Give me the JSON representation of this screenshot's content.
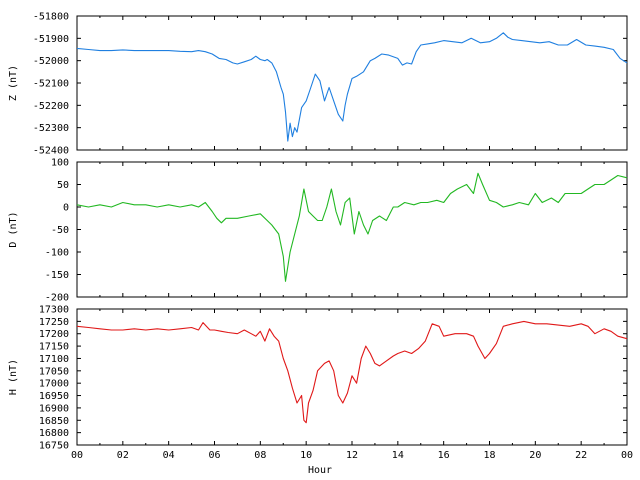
{
  "chart_data": [
    {
      "type": "line",
      "ylabel": "Z (nT)",
      "ylim": [
        -52400,
        -51800
      ],
      "yticks": [
        "-51800",
        "-51900",
        "-52000",
        "-52100",
        "-52200",
        "-52300",
        "-52400"
      ],
      "color": "#1f7fe0",
      "x": [
        0,
        0.5,
        1,
        1.5,
        2,
        2.5,
        3,
        3.5,
        4,
        4.5,
        5,
        5.3,
        5.6,
        5.9,
        6.2,
        6.5,
        6.8,
        7,
        7.3,
        7.6,
        7.8,
        8,
        8.2,
        8.3,
        8.5,
        8.7,
        8.9,
        9.0,
        9.1,
        9.2,
        9.3,
        9.4,
        9.5,
        9.6,
        9.8,
        10,
        10.2,
        10.4,
        10.6,
        10.8,
        11,
        11.2,
        11.4,
        11.6,
        11.7,
        11.8,
        12,
        12.2,
        12.5,
        12.8,
        13,
        13.3,
        13.6,
        14,
        14.2,
        14.4,
        14.6,
        14.8,
        15,
        15.3,
        15.6,
        16,
        16.4,
        16.8,
        17.2,
        17.6,
        18,
        18.3,
        18.6,
        18.8,
        19,
        19.4,
        19.8,
        20.2,
        20.6,
        21,
        21.4,
        21.8,
        22.2,
        22.6,
        23,
        23.4,
        23.7,
        24
      ],
      "y": [
        -51945,
        -51950,
        -51955,
        -51955,
        -51952,
        -51955,
        -51955,
        -51955,
        -51955,
        -51958,
        -51960,
        -51955,
        -51960,
        -51970,
        -51990,
        -51995,
        -52010,
        -52015,
        -52005,
        -51995,
        -51980,
        -51995,
        -52000,
        -51995,
        -52010,
        -52050,
        -52120,
        -52150,
        -52230,
        -52360,
        -52280,
        -52340,
        -52300,
        -52320,
        -52210,
        -52180,
        -52120,
        -52060,
        -52090,
        -52180,
        -52120,
        -52180,
        -52240,
        -52270,
        -52200,
        -52150,
        -52080,
        -52070,
        -52050,
        -52000,
        -51990,
        -51970,
        -51975,
        -51990,
        -52020,
        -52010,
        -52015,
        -51960,
        -51930,
        -51925,
        -51920,
        -51910,
        -51915,
        -51920,
        -51900,
        -51920,
        -51915,
        -51900,
        -51875,
        -51895,
        -51905,
        -51910,
        -51915,
        -51920,
        -51915,
        -51930,
        -51930,
        -51905,
        -51930,
        -51935,
        -51940,
        -51950,
        -51990,
        -52010
      ]
    },
    {
      "type": "line",
      "ylabel": "D (nT)",
      "ylim": [
        -200,
        100
      ],
      "yticks": [
        "100",
        "50",
        "0",
        "-50",
        "-100",
        "-150",
        "-200"
      ],
      "color": "#22b822",
      "x": [
        0,
        0.5,
        1,
        1.5,
        2,
        2.5,
        3,
        3.5,
        4,
        4.5,
        5,
        5.3,
        5.6,
        5.9,
        6.1,
        6.3,
        6.5,
        7,
        7.5,
        8,
        8.3,
        8.5,
        8.8,
        9.0,
        9.1,
        9.3,
        9.5,
        9.7,
        9.9,
        10.1,
        10.3,
        10.5,
        10.7,
        10.9,
        11.1,
        11.3,
        11.5,
        11.7,
        11.9,
        12.1,
        12.3,
        12.5,
        12.7,
        12.9,
        13.2,
        13.5,
        13.8,
        14,
        14.3,
        14.7,
        15,
        15.3,
        15.7,
        16,
        16.3,
        16.6,
        17,
        17.3,
        17.5,
        17.7,
        18,
        18.3,
        18.6,
        19,
        19.3,
        19.7,
        20,
        20.3,
        20.7,
        21,
        21.3,
        21.7,
        22,
        22.3,
        22.6,
        23,
        23.3,
        23.6,
        24
      ],
      "y": [
        5,
        0,
        5,
        0,
        10,
        5,
        5,
        0,
        5,
        0,
        5,
        0,
        10,
        -10,
        -25,
        -35,
        -25,
        -25,
        -20,
        -15,
        -30,
        -40,
        -60,
        -110,
        -165,
        -100,
        -60,
        -20,
        40,
        -10,
        -20,
        -30,
        -30,
        0,
        40,
        -10,
        -40,
        10,
        20,
        -60,
        -10,
        -40,
        -60,
        -30,
        -20,
        -30,
        0,
        0,
        10,
        5,
        10,
        10,
        15,
        10,
        30,
        40,
        50,
        30,
        75,
        50,
        15,
        10,
        0,
        5,
        10,
        5,
        30,
        10,
        20,
        10,
        30,
        30,
        30,
        40,
        50,
        50,
        60,
        70,
        65
      ]
    },
    {
      "type": "line",
      "xlabel": "Hour",
      "ylabel": "H (nT)",
      "ylim": [
        16750,
        17300
      ],
      "yticks": [
        "17300",
        "17250",
        "17200",
        "17150",
        "17100",
        "17050",
        "17000",
        "16950",
        "16900",
        "16850",
        "16800",
        "16750"
      ],
      "color": "#e01818",
      "x": [
        0,
        0.5,
        1,
        1.5,
        2,
        2.5,
        3,
        3.5,
        4,
        4.5,
        5,
        5.3,
        5.5,
        5.8,
        6,
        6.3,
        6.6,
        7,
        7.3,
        7.6,
        7.8,
        8,
        8.2,
        8.4,
        8.6,
        8.8,
        9,
        9.2,
        9.4,
        9.6,
        9.8,
        9.9,
        10,
        10.1,
        10.3,
        10.5,
        10.8,
        11,
        11.2,
        11.4,
        11.6,
        11.8,
        12,
        12.2,
        12.4,
        12.6,
        12.8,
        13,
        13.2,
        13.5,
        13.8,
        14,
        14.3,
        14.6,
        14.9,
        15.2,
        15.5,
        15.8,
        16,
        16.5,
        17,
        17.3,
        17.5,
        17.8,
        18,
        18.3,
        18.6,
        19,
        19.5,
        20,
        20.5,
        21,
        21.5,
        22,
        22.3,
        22.6,
        23,
        23.3,
        23.6,
        24
      ],
      "y": [
        17230,
        17225,
        17220,
        17215,
        17215,
        17220,
        17215,
        17220,
        17215,
        17220,
        17225,
        17215,
        17245,
        17215,
        17215,
        17210,
        17205,
        17200,
        17215,
        17200,
        17190,
        17210,
        17170,
        17220,
        17190,
        17170,
        17100,
        17050,
        16980,
        16920,
        16950,
        16850,
        16840,
        16920,
        16970,
        17050,
        17080,
        17090,
        17050,
        16950,
        16920,
        16960,
        17030,
        17000,
        17100,
        17150,
        17120,
        17080,
        17070,
        17090,
        17110,
        17120,
        17130,
        17120,
        17140,
        17170,
        17240,
        17230,
        17190,
        17200,
        17200,
        17190,
        17150,
        17100,
        17120,
        17160,
        17230,
        17240,
        17250,
        17240,
        17240,
        17235,
        17230,
        17240,
        17230,
        17200,
        17220,
        17210,
        17190,
        17180
      ]
    }
  ],
  "xaxis": {
    "xlabel": "Hour",
    "xlim": [
      0,
      24
    ],
    "ticks": [
      {
        "hour": 0,
        "label": "00"
      },
      {
        "hour": 2,
        "label": "02"
      },
      {
        "hour": 4,
        "label": "04"
      },
      {
        "hour": 6,
        "label": "06"
      },
      {
        "hour": 8,
        "label": "08"
      },
      {
        "hour": 10,
        "label": "10"
      },
      {
        "hour": 12,
        "label": "12"
      },
      {
        "hour": 14,
        "label": "14"
      },
      {
        "hour": 16,
        "label": "16"
      },
      {
        "hour": 18,
        "label": "18"
      },
      {
        "hour": 20,
        "label": "20"
      },
      {
        "hour": 22,
        "label": "22"
      },
      {
        "hour": 24,
        "label": "00"
      }
    ]
  }
}
